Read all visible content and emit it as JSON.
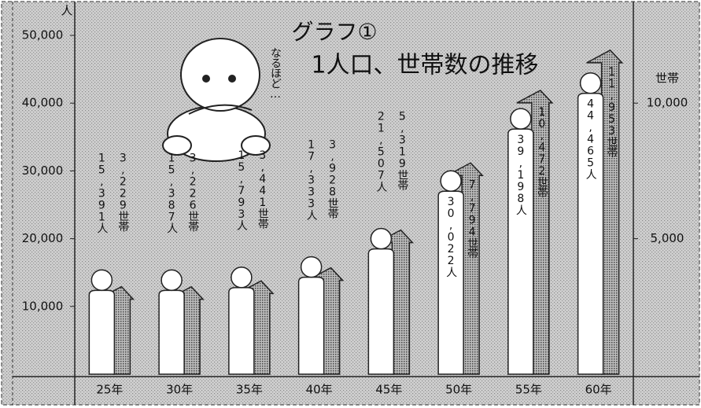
{
  "chart_data": {
    "type": "bar",
    "title": "グラフ①",
    "subtitle": "1人口、世帯数の推移",
    "annotation": "なるほど…",
    "y_label": "人",
    "y2_label": "世帯",
    "categories": [
      "25年",
      "30年",
      "35年",
      "40年",
      "45年",
      "50年",
      "55年",
      "60年"
    ],
    "series": [
      {
        "color": "#ffffff",
        "values": [
          15391,
          15387,
          15793,
          17333,
          21507,
          30022,
          39198,
          44465
        ],
        "value_labels": [
          "15,391人",
          "15,387人",
          "15,793人",
          "17,333人",
          "21,507人",
          "30,022人",
          "39,198人",
          "44,465人"
        ]
      },
      {
        "color": "#6e6e6e",
        "axis": "y2",
        "values": [
          3229,
          3226,
          3441,
          3928,
          5319,
          7794,
          10472,
          11953
        ],
        "value_labels": [
          "3,229世帯",
          "3,226世帯",
          "3,441世帯",
          "3,928世帯",
          "5,319世帯",
          "7,794世帯",
          "10,472世帯",
          "11,953世帯"
        ]
      }
    ],
    "ylim": [
      0,
      50000
    ],
    "yticks": [
      {
        "value": 10000,
        "label": "10,000"
      },
      {
        "value": 20000,
        "label": "20,000"
      },
      {
        "value": 30000,
        "label": "30,000"
      },
      {
        "value": 40000,
        "label": "40,000"
      },
      {
        "value": 50000,
        "label": "50,000"
      }
    ],
    "y2lim": [
      0,
      12500
    ],
    "y2ticks": [
      {
        "value": 5000,
        "label": "5,000"
      },
      {
        "value": 10000,
        "label": "10,000"
      }
    ]
  }
}
